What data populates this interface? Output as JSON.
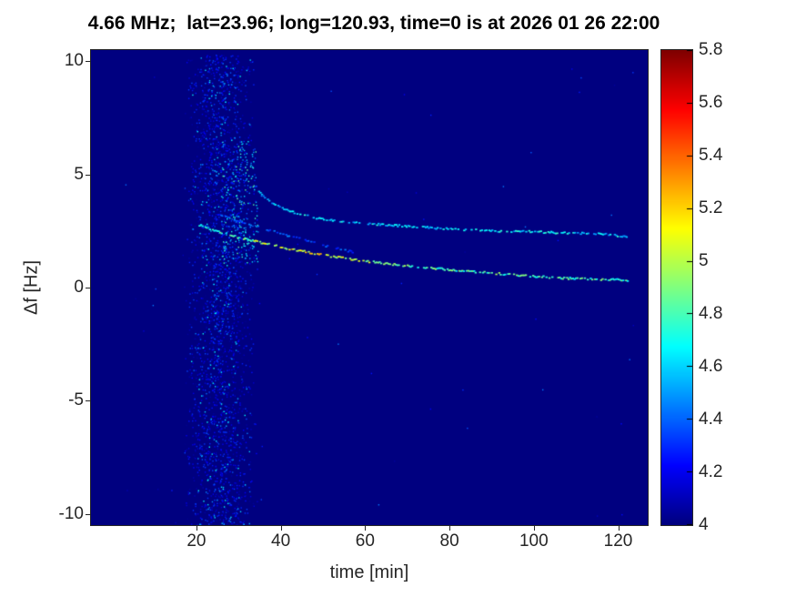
{
  "chart_data": {
    "type": "heatmap",
    "title": "4.66 MHz;  lat=23.96; long=120.93, time=0 is at 2026 01 26 22:00",
    "xlabel": "time [min]",
    "ylabel": "Δf [Hz]",
    "xlim": [
      -5,
      127
    ],
    "ylim": [
      -10.5,
      10.5
    ],
    "xticks": [
      20,
      40,
      60,
      80,
      100,
      120
    ],
    "yticks": [
      10,
      5,
      0,
      -5,
      -10
    ],
    "grid": false,
    "background_value": 4,
    "colorbar": {
      "min": 4,
      "max": 5.8,
      "colormap": "jet",
      "ticks": [
        "4",
        "4.2",
        "4.4",
        "4.6",
        "4.8",
        "5",
        "5.2",
        "5.4",
        "5.6",
        "5.8"
      ],
      "position": "right"
    },
    "noise_clusters": [
      {
        "count": 2200,
        "t": [
          16.5,
          34.5
        ],
        "f": [
          -10.5,
          10.3
        ],
        "v": [
          4.02,
          4.35
        ],
        "gauss": true
      },
      {
        "count": 500,
        "t": [
          18,
          34
        ],
        "f": [
          -10.5,
          10.3
        ],
        "v": [
          4.2,
          4.7
        ],
        "gauss": true
      },
      {
        "count": 250,
        "t": [
          26,
          34.5
        ],
        "f": [
          1.0,
          6.5
        ],
        "v": [
          4.25,
          4.85
        ],
        "gauss": false
      },
      {
        "count": 60,
        "t": [
          -2,
          124
        ],
        "f": [
          -10.4,
          10.3
        ],
        "v": [
          4.05,
          4.45
        ],
        "gauss": false
      }
    ],
    "traces": [
      {
        "name": "upper-doppler-trace",
        "points": [
          [
            32.5,
            5.25
          ],
          [
            33.5,
            4.7
          ],
          [
            34.5,
            4.3
          ],
          [
            36,
            4.0
          ],
          [
            38,
            3.75
          ],
          [
            40,
            3.55
          ],
          [
            43,
            3.35
          ],
          [
            46,
            3.2
          ],
          [
            49,
            3.08
          ],
          [
            52,
            3.0
          ],
          [
            56,
            2.92
          ],
          [
            60,
            2.86
          ],
          [
            65,
            2.8
          ],
          [
            70,
            2.74
          ],
          [
            75,
            2.68
          ],
          [
            80,
            2.62
          ],
          [
            85,
            2.58
          ],
          [
            90,
            2.54
          ],
          [
            95,
            2.52
          ],
          [
            100,
            2.5
          ],
          [
            105,
            2.46
          ],
          [
            110,
            2.44
          ],
          [
            115,
            2.42
          ],
          [
            118,
            2.38
          ],
          [
            120,
            2.3
          ],
          [
            122,
            2.28
          ]
        ],
        "values": [
          [
            32.5,
            4.45
          ],
          [
            36,
            4.55
          ],
          [
            45,
            4.65
          ],
          [
            60,
            4.6
          ],
          [
            80,
            4.6
          ],
          [
            100,
            4.65
          ],
          [
            122,
            4.6
          ]
        ],
        "value_jitter": 0.3,
        "gap": 0.35
      },
      {
        "name": "lower-doppler-trace",
        "points": [
          [
            20.5,
            2.8
          ],
          [
            23,
            2.62
          ],
          [
            26,
            2.45
          ],
          [
            29,
            2.3
          ],
          [
            32,
            2.15
          ],
          [
            35,
            2.02
          ],
          [
            38,
            1.9
          ],
          [
            41,
            1.78
          ],
          [
            44,
            1.67
          ],
          [
            47,
            1.57
          ],
          [
            50,
            1.47
          ],
          [
            53,
            1.38
          ],
          [
            56,
            1.3
          ],
          [
            60,
            1.2
          ],
          [
            64,
            1.11
          ],
          [
            68,
            1.03
          ],
          [
            72,
            0.96
          ],
          [
            76,
            0.89
          ],
          [
            80,
            0.82
          ],
          [
            84,
            0.76
          ],
          [
            88,
            0.7
          ],
          [
            92,
            0.64
          ],
          [
            96,
            0.58
          ],
          [
            100,
            0.53
          ],
          [
            104,
            0.48
          ],
          [
            108,
            0.44
          ],
          [
            112,
            0.42
          ],
          [
            116,
            0.4
          ],
          [
            119,
            0.38
          ],
          [
            122,
            0.35
          ]
        ],
        "values": [
          [
            20.5,
            4.6
          ],
          [
            28,
            4.75
          ],
          [
            35,
            4.95
          ],
          [
            42,
            5.1
          ],
          [
            50,
            5.1
          ],
          [
            58,
            4.95
          ],
          [
            65,
            4.85
          ],
          [
            80,
            4.8
          ],
          [
            100,
            4.8
          ],
          [
            122,
            4.75
          ]
        ],
        "value_jitter": 0.35,
        "gap": 0.3
      },
      {
        "name": "faint-middle-trace",
        "points": [
          [
            22.5,
            3.4
          ],
          [
            26,
            3.2
          ],
          [
            30,
            2.97
          ],
          [
            34,
            2.75
          ],
          [
            38,
            2.52
          ],
          [
            42,
            2.3
          ],
          [
            46,
            2.1
          ],
          [
            50,
            1.9
          ],
          [
            54,
            1.72
          ],
          [
            57,
            1.6
          ]
        ],
        "values": [
          [
            22.5,
            4.3
          ],
          [
            40,
            4.4
          ],
          [
            57,
            4.35
          ]
        ],
        "value_jitter": 0.2,
        "gap": 0.5
      }
    ]
  }
}
